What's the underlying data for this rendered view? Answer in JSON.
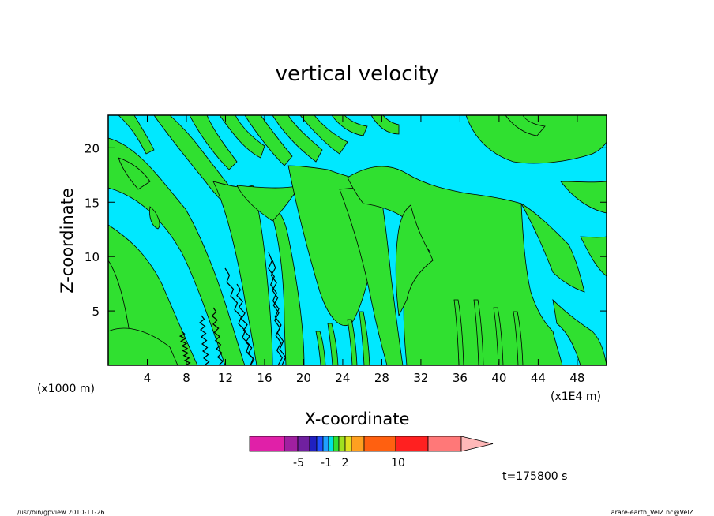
{
  "chart_data": {
    "type": "heatmap",
    "title": "vertical velocity",
    "xlabel": "X-coordinate",
    "ylabel": "Z-coordinate",
    "x_unit_left": "(x1000 m)",
    "x_unit_right": "(x1E4 m)",
    "xlim": [
      0,
      51
    ],
    "ylim": [
      0,
      23
    ],
    "x_ticks": [
      4,
      8,
      12,
      16,
      20,
      24,
      28,
      32,
      36,
      40,
      44,
      48
    ],
    "y_ticks": [
      5,
      10,
      15,
      20
    ],
    "time_label": "t=175800 s",
    "colorbar": {
      "colors": [
        "#e020a8",
        "#a020a0",
        "#7020a0",
        "#2020c0",
        "#2050ff",
        "#20a0ff",
        "#00e0e0",
        "#30e030",
        "#a0e020",
        "#e0e020",
        "#ffa020",
        "#ff6010",
        "#ff2020",
        "#ff7878",
        "#ffb8b8"
      ],
      "tick_labels": [
        "-5",
        "-1",
        "2",
        "10"
      ],
      "extend": "right"
    },
    "fill_colors": {
      "negative": "#00e8ff",
      "positive": "#30e030"
    }
  },
  "footer": {
    "left": "/usr/bin/gpview   2010-11-26",
    "right": "arare-earth_VelZ.nc@VelZ"
  }
}
